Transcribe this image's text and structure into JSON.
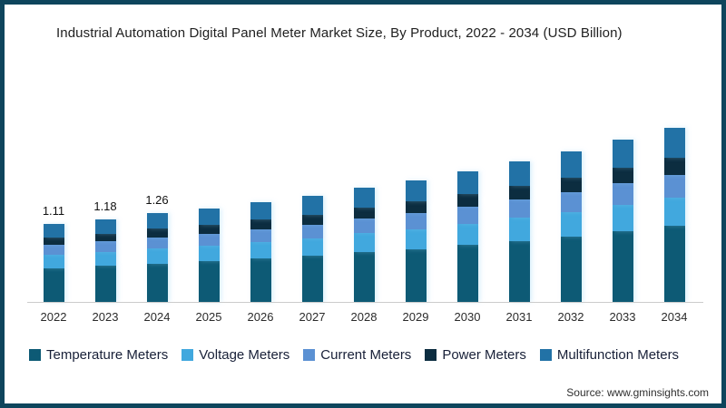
{
  "page": {
    "title": "Industrial Automation Digital Panel Meter Market Size, By Product, 2022 - 2034 (USD Billion)",
    "source": "Source: www.gminsights.com",
    "border_color": "#0E455C"
  },
  "chart_data": {
    "type": "bar",
    "stacked": true,
    "title": "Industrial Automation Digital Panel Meter Market Size, By Product, 2022 - 2034 (USD Billion)",
    "unit": "USD Billion",
    "xlabel": "",
    "ylabel": "",
    "grid": false,
    "legend_position": "bottom",
    "axis_color": "#CCCCCC",
    "categories": [
      "2022",
      "2023",
      "2024",
      "2025",
      "2026",
      "2027",
      "2028",
      "2029",
      "2030",
      "2031",
      "2032",
      "2033",
      "2034"
    ],
    "totals": [
      1.11,
      1.18,
      1.26,
      1.33,
      1.42,
      1.51,
      1.63,
      1.73,
      1.86,
      2.0,
      2.14,
      2.31,
      2.48
    ],
    "bar_value_labels": [
      "1.11",
      "1.18",
      "1.26",
      "",
      "",
      "",
      "",
      "",
      "",
      "",
      "",
      "",
      ""
    ],
    "series": [
      {
        "name": "Temperature Meters",
        "color": "#0D5A75",
        "values": [
          0.483,
          0.513,
          0.548,
          0.579,
          0.618,
          0.657,
          0.709,
          0.753,
          0.809,
          0.87,
          0.931,
          1.005,
          1.079
        ]
      },
      {
        "name": "Voltage Meters",
        "color": "#41A8DE",
        "values": [
          0.183,
          0.195,
          0.208,
          0.219,
          0.234,
          0.249,
          0.269,
          0.285,
          0.307,
          0.33,
          0.353,
          0.381,
          0.409
        ]
      },
      {
        "name": "Current Meters",
        "color": "#5B91D3",
        "values": [
          0.144,
          0.153,
          0.164,
          0.173,
          0.185,
          0.196,
          0.212,
          0.225,
          0.242,
          0.26,
          0.278,
          0.3,
          0.322
        ]
      },
      {
        "name": "Power Meters",
        "color": "#0C2D40",
        "values": [
          0.105,
          0.112,
          0.12,
          0.126,
          0.135,
          0.143,
          0.155,
          0.164,
          0.177,
          0.19,
          0.203,
          0.219,
          0.236
        ]
      },
      {
        "name": "Multifunction Meters",
        "color": "#2272A6",
        "values": [
          0.194,
          0.207,
          0.221,
          0.233,
          0.249,
          0.264,
          0.285,
          0.303,
          0.326,
          0.35,
          0.375,
          0.404,
          0.434
        ]
      }
    ]
  }
}
